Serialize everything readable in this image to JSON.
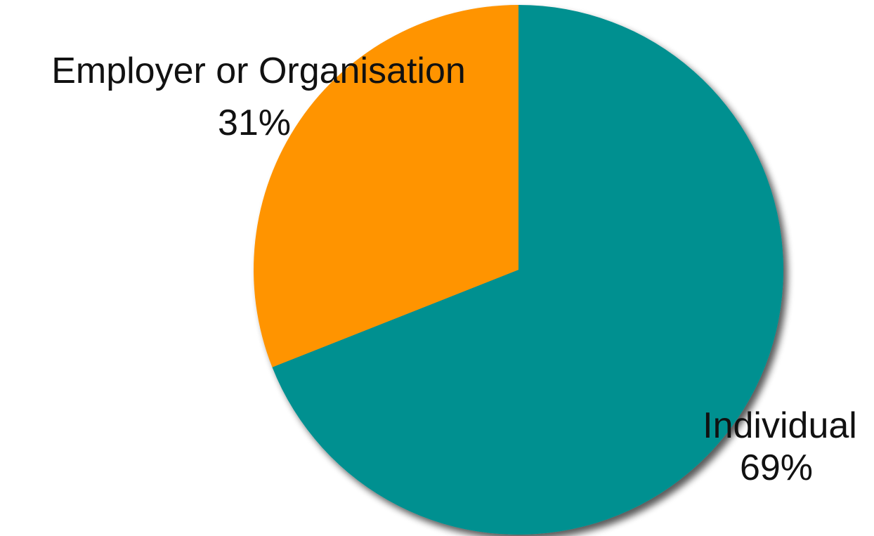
{
  "chart_data": {
    "type": "pie",
    "title": "",
    "start_angle_deg": 0,
    "direction": "clockwise",
    "slices": [
      {
        "label": "Individual",
        "value": 69,
        "value_label": "69%",
        "color": "#009090"
      },
      {
        "label": "Employer or Organisation",
        "value": 31,
        "value_label": "31%",
        "color": "#FF9400"
      }
    ],
    "shadow": true
  }
}
